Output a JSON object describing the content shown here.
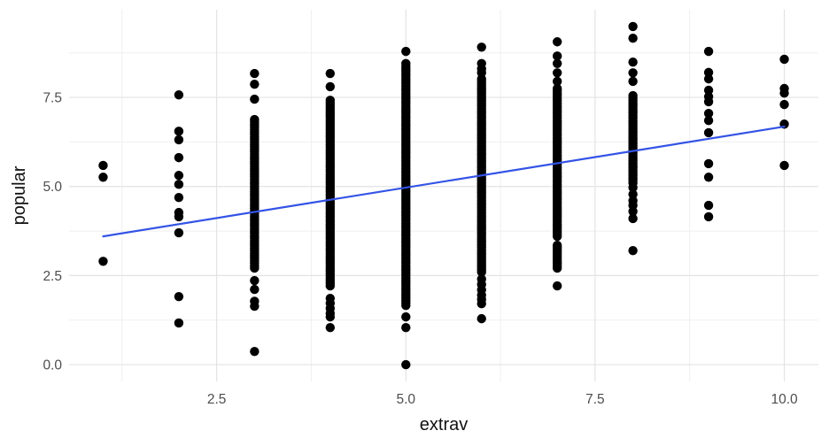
{
  "chart_data": {
    "type": "scatter",
    "title": "",
    "xlabel": "extrav",
    "ylabel": "popular",
    "xlim": [
      0.55,
      10.45
    ],
    "ylim": [
      -0.47,
      9.96
    ],
    "grid": true,
    "legend": false,
    "colors": {
      "point": "#000000",
      "trend_line": "#3353e6",
      "grid_major": "#e3e3e3",
      "grid_minor": "#efefef",
      "axis_text": "#4d4d4d",
      "axis_title": "#111111",
      "background": "#ffffff"
    },
    "x_ticks": {
      "values": [
        2.5,
        5.0,
        7.5,
        10.0
      ],
      "labels": [
        "2.5",
        "5.0",
        "7.5",
        "10.0"
      ]
    },
    "y_ticks": {
      "values": [
        0.0,
        2.5,
        5.0,
        7.5
      ],
      "labels": [
        "0.0",
        "2.5",
        "5.0",
        "7.5"
      ]
    },
    "x_minor_gridlines": [
      1.25,
      3.75,
      6.25,
      8.75
    ],
    "y_minor_gridlines": [
      1.25,
      3.75,
      6.25,
      8.75
    ],
    "trend_line": {
      "x1": 1.0,
      "y1": 3.6,
      "x2": 10.0,
      "y2": 6.68
    },
    "series": [
      {
        "extrav": 1,
        "points": [
          5.59,
          5.26,
          2.9
        ],
        "dense_ranges": []
      },
      {
        "extrav": 2,
        "points": [
          7.57,
          6.55,
          6.31,
          5.81,
          5.31,
          5.06,
          4.69,
          4.27,
          4.15,
          3.7,
          1.91,
          1.17
        ],
        "dense_ranges": []
      },
      {
        "extrav": 3,
        "points": [
          8.17,
          7.87,
          7.45,
          2.36,
          2.11,
          1.78,
          1.64,
          0.37
        ],
        "dense_ranges": [
          [
            2.71,
            6.88
          ]
        ]
      },
      {
        "extrav": 4,
        "points": [
          8.17,
          7.8,
          1.86,
          1.72,
          1.58,
          1.44,
          1.34,
          1.04
        ],
        "dense_ranges": [
          [
            2.21,
            7.42
          ]
        ]
      },
      {
        "extrav": 5,
        "points": [
          8.79,
          1.34,
          1.04,
          0.0
        ],
        "dense_ranges": [
          [
            1.66,
            8.45
          ]
        ]
      },
      {
        "extrav": 6,
        "points": [
          8.91,
          8.45,
          8.3,
          8.19,
          2.4,
          2.25,
          2.1,
          1.95,
          1.83,
          1.71,
          1.29
        ],
        "dense_ranges": [
          [
            2.6,
            8.02
          ]
        ]
      },
      {
        "extrav": 7,
        "points": [
          9.06,
          8.66,
          8.45,
          8.19,
          7.95,
          2.21
        ],
        "dense_ranges": [
          [
            3.6,
            7.75
          ],
          [
            2.71,
            3.35
          ]
        ]
      },
      {
        "extrav": 8,
        "points": [
          9.49,
          9.16,
          8.49,
          8.19,
          7.95,
          4.97,
          4.78,
          4.6,
          4.47,
          4.3,
          4.1,
          3.2
        ],
        "dense_ranges": [
          [
            5.1,
            7.55
          ]
        ]
      },
      {
        "extrav": 9,
        "points": [
          8.79,
          8.2,
          8.02,
          7.7,
          7.52,
          7.38,
          7.05,
          6.85,
          6.51,
          5.64,
          5.26,
          4.47,
          4.15
        ],
        "dense_ranges": []
      },
      {
        "extrav": 10,
        "points": [
          8.57,
          7.75,
          7.62,
          7.3,
          6.75,
          5.59
        ],
        "dense_ranges": []
      }
    ]
  }
}
